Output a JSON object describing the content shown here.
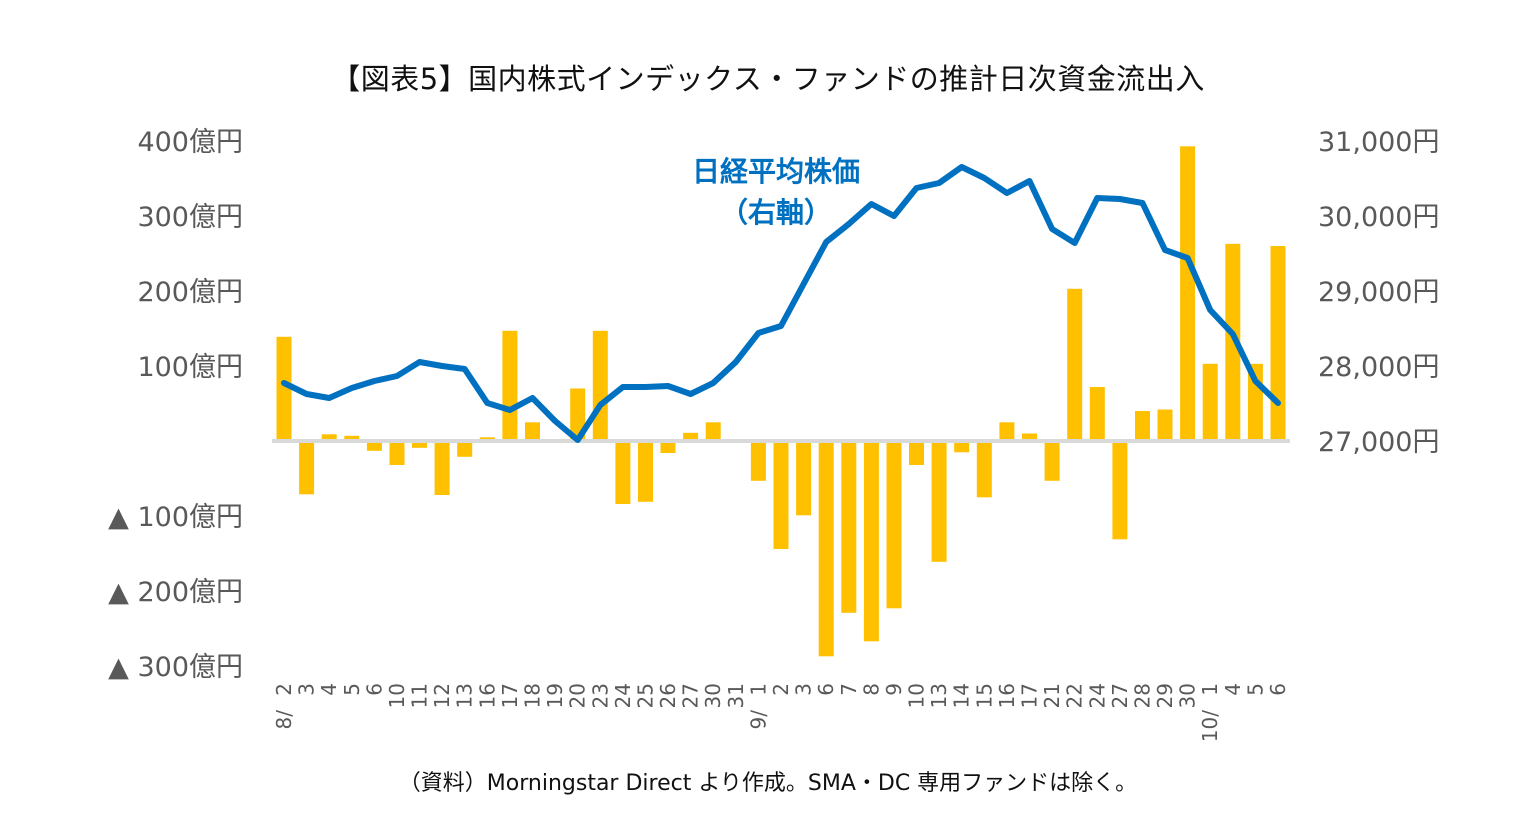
{
  "chart_data": {
    "type": "bar",
    "title": "【図表5】国内株式インデックス・ファンドの推計日次資金流出入",
    "source": "（資料）Morningstar Direct より作成。SMA・DC 専用ファンドは除く。",
    "xlabel": "",
    "ylabel": "",
    "grid": false,
    "categories": [
      "8/ 2",
      "3",
      "4",
      "5",
      "6",
      "10",
      "11",
      "12",
      "13",
      "16",
      "17",
      "18",
      "19",
      "20",
      "23",
      "24",
      "25",
      "26",
      "27",
      "30",
      "31",
      "9/ 1",
      "2",
      "3",
      "6",
      "7",
      "8",
      "9",
      "10",
      "13",
      "14",
      "15",
      "16",
      "17",
      "21",
      "22",
      "24",
      "27",
      "28",
      "29",
      "30",
      "10/ 1",
      "4",
      "5",
      "6"
    ],
    "month_markers": [
      {
        "index": 0,
        "label": "8/",
        "day": "2"
      },
      {
        "index": 21,
        "label": "9/",
        "day": "1"
      },
      {
        "index": 41,
        "label": "10/",
        "day": "1"
      }
    ],
    "series": [
      {
        "name": "推計日次資金流出入",
        "type": "bar",
        "axis": "left",
        "color": "#FFC000",
        "unit": "億円",
        "values": [
          139,
          -71,
          9,
          7,
          -13,
          -32,
          -9,
          -72,
          -21,
          5,
          147,
          25,
          0,
          70,
          147,
          -84,
          -81,
          -16,
          11,
          25,
          -2,
          -53,
          -144,
          -99,
          -287,
          -229,
          -267,
          -223,
          -32,
          -161,
          -15,
          -75,
          25,
          10,
          -53,
          203,
          72,
          -131,
          40,
          42,
          393,
          103,
          263,
          103,
          260
        ]
      },
      {
        "name": "日経平均株価（右軸）",
        "type": "line",
        "axis": "right",
        "color": "#0070C0",
        "unit": "円",
        "values": [
          27773,
          27627,
          27573,
          27707,
          27800,
          27867,
          28053,
          28000,
          27960,
          27507,
          27413,
          27573,
          27267,
          27013,
          27480,
          27720,
          27720,
          27733,
          27627,
          27773,
          28053,
          28440,
          28533,
          29093,
          29653,
          29893,
          30160,
          30000,
          30373,
          30440,
          30653,
          30507,
          30307,
          30467,
          29827,
          29640,
          30240,
          30227,
          30173,
          29547,
          29440,
          28747,
          28427,
          27800,
          27507
        ]
      }
    ],
    "left_axis": {
      "ylim": [
        -300,
        400
      ],
      "ticks": [
        400,
        300,
        200,
        100,
        -100,
        -200,
        -300
      ],
      "tick_labels": [
        "400億円",
        "300億円",
        "200億円",
        "100億円",
        "▲ 100億円",
        "▲ 200億円",
        "▲ 300億円"
      ]
    },
    "right_axis": {
      "ylim": [
        27000,
        31000
      ],
      "ticks": [
        31000,
        30000,
        29000,
        28000,
        27000
      ],
      "tick_labels": [
        "31,000円",
        "30,000円",
        "29,000円",
        "28,000円",
        "27,000円"
      ]
    },
    "annotations": [
      {
        "text_line1": "日経平均株価",
        "text_line2": "（右軸）",
        "color": "#0070C0"
      }
    ],
    "zero_line_color": "#D9D9D9"
  }
}
